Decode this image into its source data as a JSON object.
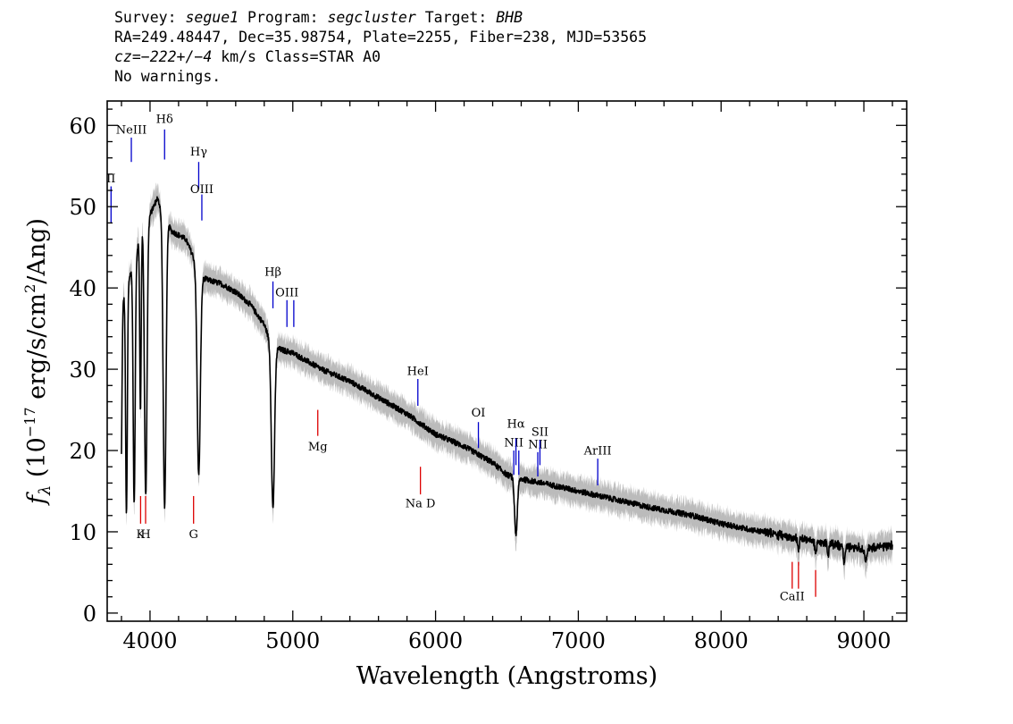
{
  "header": {
    "line1": {
      "survey_label": "Survey:",
      "survey": "segue1",
      "program_label": "Program:",
      "program": "segcluster",
      "target_label": "Target:",
      "target": "BHB"
    },
    "line2": "RA=249.48447, Dec=35.98754, Plate=2255, Fiber=238, MJD=53565",
    "line3": {
      "cz": "cz=−222+/−4",
      "unit": "km/s",
      "class": "Class=STAR A0"
    },
    "line4": "No warnings."
  },
  "chart_data": {
    "type": "line",
    "xlabel": "Wavelength (Angstroms)",
    "ylabel": "fλ (10⁻¹⁷ erg/s/cm²/Ang)",
    "xlim": [
      3700,
      9300
    ],
    "ylim": [
      -1,
      63
    ],
    "xticks": [
      4000,
      5000,
      6000,
      7000,
      8000,
      9000
    ],
    "yticks": [
      0,
      10,
      20,
      30,
      40,
      50,
      60
    ],
    "grid": false,
    "colors": {
      "spectrum": "#000000",
      "error_band": "#bbbbbb",
      "emission_lines": "#0000cc",
      "absorption_lines": "#dd0000"
    },
    "continuum": [
      [
        3800,
        38
      ],
      [
        3900,
        44
      ],
      [
        3950,
        48
      ],
      [
        4000,
        49
      ],
      [
        4050,
        51
      ],
      [
        4100,
        49
      ],
      [
        4150,
        47
      ],
      [
        4200,
        46.5
      ],
      [
        4250,
        46
      ],
      [
        4300,
        44
      ],
      [
        4350,
        41.5
      ],
      [
        4400,
        41
      ],
      [
        4500,
        40.5
      ],
      [
        4600,
        39.5
      ],
      [
        4700,
        38
      ],
      [
        4800,
        35.5
      ],
      [
        4850,
        33
      ],
      [
        4900,
        32.5
      ],
      [
        5000,
        32
      ],
      [
        5200,
        30
      ],
      [
        5400,
        28.5
      ],
      [
        5600,
        26.5
      ],
      [
        5800,
        24.5
      ],
      [
        6000,
        22
      ],
      [
        6200,
        20.5
      ],
      [
        6400,
        18.5
      ],
      [
        6500,
        17
      ],
      [
        6600,
        16.5
      ],
      [
        6800,
        15.8
      ],
      [
        7000,
        15
      ],
      [
        7200,
        14.2
      ],
      [
        7500,
        13
      ],
      [
        7800,
        12
      ],
      [
        8000,
        11
      ],
      [
        8200,
        10.3
      ],
      [
        8500,
        9.3
      ],
      [
        8800,
        8.4
      ],
      [
        9000,
        7.9
      ],
      [
        9200,
        8.3
      ]
    ],
    "absorption_features": [
      {
        "center": 3797,
        "depth": 21,
        "width": 6
      },
      {
        "center": 3835,
        "depth": 28,
        "width": 6
      },
      {
        "center": 3889,
        "depth": 30,
        "width": 7
      },
      {
        "center": 3933,
        "depth": 22,
        "width": 5
      },
      {
        "center": 3970,
        "depth": 34,
        "width": 9
      },
      {
        "center": 4102,
        "depth": 36,
        "width": 10
      },
      {
        "center": 4341,
        "depth": 25,
        "width": 11
      },
      {
        "center": 4861,
        "depth": 20,
        "width": 11
      },
      {
        "center": 6563,
        "depth": 7,
        "width": 10
      },
      {
        "center": 8542,
        "depth": 1.5,
        "width": 6
      },
      {
        "center": 8662,
        "depth": 1.5,
        "width": 6
      },
      {
        "center": 8750,
        "depth": 1.2,
        "width": 6
      },
      {
        "center": 8863,
        "depth": 2,
        "width": 6
      },
      {
        "center": 9015,
        "depth": 1.2,
        "width": 8
      }
    ],
    "emission_lines": [
      {
        "label": "II",
        "x": 3727,
        "label_y": 53,
        "y_top": 52.5,
        "y_bot": 48
      },
      {
        "label": "NeIII",
        "x": 3869,
        "label_y": 59,
        "y_top": 58.5,
        "y_bot": 55.5
      },
      {
        "label": "Hδ",
        "x": 4102,
        "label_y": 60.3,
        "y_top": 59.5,
        "y_bot": 55.8
      },
      {
        "label": "Hγ",
        "x": 4341,
        "label_y": 56.3,
        "y_top": 55.5,
        "y_bot": 52.2
      },
      {
        "label": "OIII",
        "x": 4363,
        "label_y": 51.7,
        "y_top": 51.5,
        "y_bot": 48.3
      },
      {
        "label": "Hβ",
        "x": 4861,
        "label_y": 41.5,
        "y_top": 40.8,
        "y_bot": 37.5
      },
      {
        "label": "OIII",
        "x": 4959,
        "label_y": 39.0,
        "y_top": 38.5,
        "y_bot": 35.2
      },
      {
        "label": "",
        "x": 5007,
        "label_y": 0,
        "y_top": 38.5,
        "y_bot": 35.2
      },
      {
        "label": "HeI",
        "x": 5876,
        "label_y": 29.3,
        "y_top": 28.8,
        "y_bot": 25.5
      },
      {
        "label": "OI",
        "x": 6300,
        "label_y": 24.2,
        "y_top": 23.5,
        "y_bot": 20.3
      },
      {
        "label": "NII",
        "x": 6548,
        "label_y": 20.5,
        "y_top": 20.0,
        "y_bot": 17.0
      },
      {
        "label": "Hα",
        "x": 6563,
        "label_y": 22.8,
        "y_top": 21.5,
        "y_bot": 18.2
      },
      {
        "label": "",
        "x": 6583,
        "label_y": 0,
        "y_top": 20.0,
        "y_bot": 17.0
      },
      {
        "label": "NII",
        "x": 6716,
        "label_y": 20.3,
        "y_top": 19.8,
        "y_bot": 16.8
      },
      {
        "label": "SII",
        "x": 6731,
        "label_y": 21.8,
        "y_top": 21.3,
        "y_bot": 18.2
      },
      {
        "label": "ArIII",
        "x": 7136,
        "label_y": 19.5,
        "y_top": 19.0,
        "y_bot": 15.7
      }
    ],
    "absorption_lines": [
      {
        "label": "K",
        "x": 3934,
        "y_top": 14.4,
        "y_bot": 11.0,
        "label_y": 9.2
      },
      {
        "label": "H",
        "x": 3969,
        "y_top": 14.4,
        "y_bot": 11.0,
        "label_y": 9.2
      },
      {
        "label": "G",
        "x": 4305,
        "y_top": 14.4,
        "y_bot": 11.0,
        "label_y": 9.2
      },
      {
        "label": "Mg",
        "x": 5175,
        "y_top": 25.0,
        "y_bot": 21.8,
        "label_y": 20.0
      },
      {
        "label": "Na D",
        "x": 5894,
        "y_top": 18.0,
        "y_bot": 14.6,
        "label_y": 13.0
      },
      {
        "label": "CaII",
        "x": 8498,
        "y_top": 6.3,
        "y_bot": 3.0,
        "label_y": 1.6
      },
      {
        "label": "",
        "x": 8542,
        "y_top": 6.3,
        "y_bot": 3.0,
        "label_y": 0
      },
      {
        "label": "",
        "x": 8662,
        "y_top": 5.3,
        "y_bot": 2.0,
        "label_y": 0
      }
    ]
  }
}
